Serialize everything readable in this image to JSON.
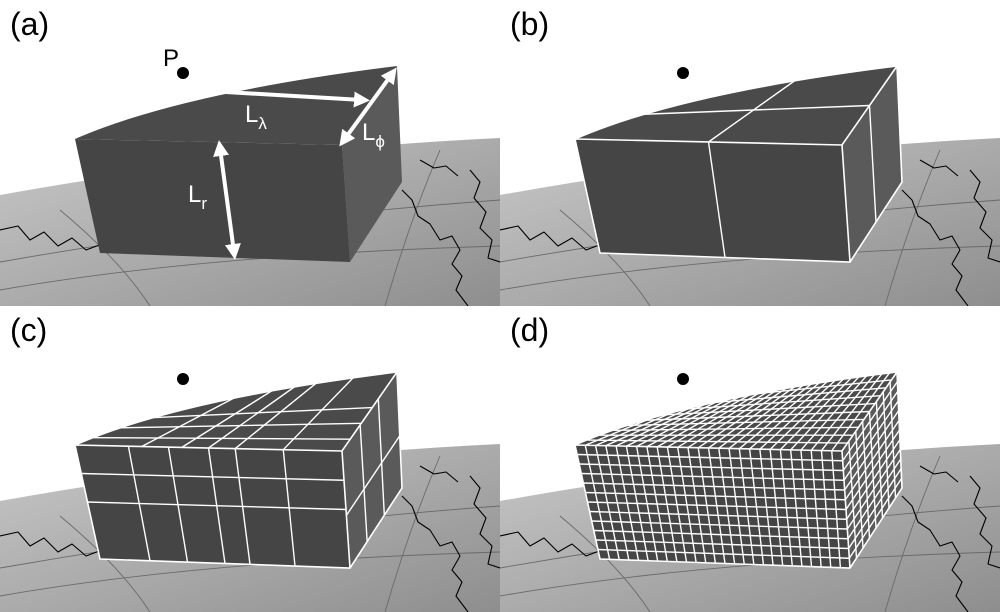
{
  "panels": [
    {
      "label": "(a)"
    },
    {
      "label": "(b)"
    },
    {
      "label": "(c)"
    },
    {
      "label": "(d)"
    }
  ],
  "annotations": {
    "point_label": "P",
    "L_lambda": {
      "base": "L",
      "sub": "λ"
    },
    "L_phi": {
      "base": "L",
      "sub": "ϕ"
    },
    "L_r": {
      "base": "L",
      "sub": "r"
    }
  },
  "colors": {
    "globe_light": "#c8c8c8",
    "globe_dark": "#8e8e8e",
    "block_top": "#4a4a4a",
    "block_front": "#454545",
    "block_side": "#5a5a5a",
    "mesh": "#ffffff",
    "coast": "#000000"
  }
}
